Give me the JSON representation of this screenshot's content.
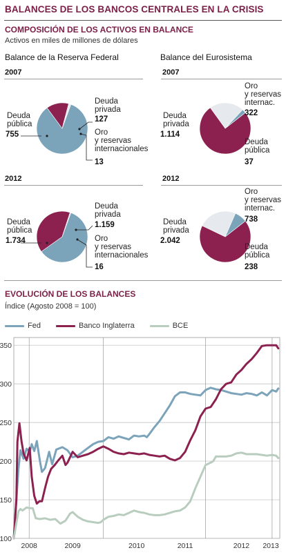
{
  "title": "BALANCES DE LOS BANCOS CENTRALES EN LA CRISIS",
  "section1": {
    "title": "COMPOSICIÓN DE LOS ACTIVOS EN BALANCE",
    "subtitle": "Activos en miles de millones de dólares",
    "fed_heading": "Balance de la Reserva Federal",
    "euro_heading": "Balance del Eurosistema"
  },
  "section2": {
    "title": "EVOLUCIÓN DE LOS BALANCES",
    "subtitle": "Índice (Agosto 2008 = 100)"
  },
  "colors": {
    "fed": "#7ba3ba",
    "boe": "#8c2150",
    "ecb": "#b9cdbf",
    "oro": "#e6eaee",
    "title": "#7a1f45"
  },
  "chart_data": [
    {
      "type": "pie",
      "title": "Balance de la Reserva Federal",
      "subtitle": "2007",
      "slices": [
        {
          "label": "Deuda pública",
          "value": 755
        },
        {
          "label": "Deuda privada",
          "value": 127
        },
        {
          "label": "Oro y reservas internacionales",
          "value": 13
        }
      ]
    },
    {
      "type": "pie",
      "title": "Balance del Eurosistema",
      "subtitle": "2007",
      "slices": [
        {
          "label": "Deuda privada",
          "value": 1114
        },
        {
          "label": "Oro y reservas internac.",
          "value": 322
        },
        {
          "label": "Deuda pública",
          "value": 37
        }
      ]
    },
    {
      "type": "pie",
      "title": "Balance de la Reserva Federal",
      "subtitle": "2012",
      "slices": [
        {
          "label": "Deuda pública",
          "value": 1734
        },
        {
          "label": "Deuda privada",
          "value": 1159
        },
        {
          "label": "Oro y reservas internacionales",
          "value": 16
        }
      ]
    },
    {
      "type": "pie",
      "title": "Balance del Eurosistema",
      "subtitle": "2012",
      "slices": [
        {
          "label": "Deuda privada",
          "value": 2042
        },
        {
          "label": "Oro y reservas internac.",
          "value": 738
        },
        {
          "label": "Deuda pública",
          "value": 238
        }
      ]
    },
    {
      "type": "line",
      "title": "EVOLUCIÓN DE LOS BALANCES",
      "subtitle": "Índice (Agosto 2008 = 100)",
      "x_unit": "year (decimal)",
      "xlim": [
        2007.95,
        2013.15
      ],
      "ylim": [
        100,
        360
      ],
      "yticks": [
        100,
        150,
        200,
        250,
        300,
        350
      ],
      "xtick_labels": [
        "2008",
        "2009",
        "2010",
        "2011",
        "2012",
        "2013"
      ],
      "xtick_values": [
        2008.25,
        2009.1,
        2010.35,
        2011.3,
        2012.4,
        2013.1
      ],
      "grid": true,
      "legend": "top-left",
      "series": [
        {
          "name": "Fed",
          "points": [
            [
              2007.95,
              100
            ],
            [
              2008.0,
              150
            ],
            [
              2008.04,
              190
            ],
            [
              2008.08,
              214
            ],
            [
              2008.14,
              203
            ],
            [
              2008.2,
              216
            ],
            [
              2008.26,
              212
            ],
            [
              2008.3,
              222
            ],
            [
              2008.35,
              213
            ],
            [
              2008.4,
              226
            ],
            [
              2008.46,
              200
            ],
            [
              2008.5,
              186
            ],
            [
              2008.56,
              191
            ],
            [
              2008.64,
              212
            ],
            [
              2008.7,
              196
            ],
            [
              2008.78,
              215
            ],
            [
              2008.9,
              218
            ],
            [
              2009.0,
              214
            ],
            [
              2009.1,
              205
            ],
            [
              2009.2,
              207
            ],
            [
              2009.3,
              212
            ],
            [
              2009.4,
              217
            ],
            [
              2009.5,
              222
            ],
            [
              2009.6,
              225
            ],
            [
              2009.7,
              226
            ],
            [
              2009.8,
              231
            ],
            [
              2009.9,
              229
            ],
            [
              2010.0,
              232
            ],
            [
              2010.1,
              230
            ],
            [
              2010.2,
              228
            ],
            [
              2010.3,
              233
            ],
            [
              2010.4,
              232
            ],
            [
              2010.5,
              233
            ],
            [
              2010.55,
              231
            ],
            [
              2010.6,
              235
            ],
            [
              2010.7,
              244
            ],
            [
              2010.8,
              252
            ],
            [
              2010.9,
              262
            ],
            [
              2011.0,
              272
            ],
            [
              2011.1,
              284
            ],
            [
              2011.2,
              289
            ],
            [
              2011.3,
              289
            ],
            [
              2011.4,
              287
            ],
            [
              2011.5,
              286
            ],
            [
              2011.6,
              285
            ],
            [
              2011.7,
              292
            ],
            [
              2011.8,
              295
            ],
            [
              2011.9,
              293
            ],
            [
              2012.0,
              292
            ],
            [
              2012.1,
              290
            ],
            [
              2012.2,
              288
            ],
            [
              2012.3,
              287
            ],
            [
              2012.4,
              286
            ],
            [
              2012.5,
              288
            ],
            [
              2012.6,
              287
            ],
            [
              2012.7,
              285
            ],
            [
              2012.8,
              289
            ],
            [
              2012.9,
              285
            ],
            [
              2013.0,
              292
            ],
            [
              2013.08,
              290
            ],
            [
              2013.12,
              294
            ]
          ]
        },
        {
          "name": "Banco Inglaterra",
          "points": [
            [
              2007.95,
              100
            ],
            [
              2008.0,
              150
            ],
            [
              2008.02,
              225
            ],
            [
              2008.06,
              249
            ],
            [
              2008.1,
              226
            ],
            [
              2008.14,
              210
            ],
            [
              2008.2,
              201
            ],
            [
              2008.26,
              217
            ],
            [
              2008.3,
              180
            ],
            [
              2008.35,
              155
            ],
            [
              2008.4,
              145
            ],
            [
              2008.45,
              148
            ],
            [
              2008.5,
              148
            ],
            [
              2008.56,
              165
            ],
            [
              2008.62,
              180
            ],
            [
              2008.68,
              190
            ],
            [
              2008.75,
              195
            ],
            [
              2008.82,
              201
            ],
            [
              2008.9,
              207
            ],
            [
              2008.96,
              195
            ],
            [
              2009.0,
              198
            ],
            [
              2009.1,
              212
            ],
            [
              2009.2,
              205
            ],
            [
              2009.3,
              207
            ],
            [
              2009.4,
              209
            ],
            [
              2009.5,
              212
            ],
            [
              2009.6,
              216
            ],
            [
              2009.7,
              219
            ],
            [
              2009.8,
              216
            ],
            [
              2009.9,
              212
            ],
            [
              2010.0,
              210
            ],
            [
              2010.1,
              209
            ],
            [
              2010.2,
              211
            ],
            [
              2010.3,
              210
            ],
            [
              2010.4,
              209
            ],
            [
              2010.5,
              210
            ],
            [
              2010.6,
              208
            ],
            [
              2010.7,
              207
            ],
            [
              2010.8,
              206
            ],
            [
              2010.9,
              207
            ],
            [
              2011.0,
              203
            ],
            [
              2011.1,
              201
            ],
            [
              2011.2,
              204
            ],
            [
              2011.3,
              212
            ],
            [
              2011.4,
              227
            ],
            [
              2011.5,
              240
            ],
            [
              2011.6,
              258
            ],
            [
              2011.7,
              268
            ],
            [
              2011.8,
              270
            ],
            [
              2011.9,
              280
            ],
            [
              2012.0,
              293
            ],
            [
              2012.1,
              300
            ],
            [
              2012.2,
              302
            ],
            [
              2012.3,
              312
            ],
            [
              2012.4,
              318
            ],
            [
              2012.5,
              326
            ],
            [
              2012.6,
              332
            ],
            [
              2012.7,
              340
            ],
            [
              2012.8,
              349
            ],
            [
              2012.9,
              350
            ],
            [
              2013.0,
              350
            ],
            [
              2013.08,
              350
            ],
            [
              2013.12,
              346
            ]
          ]
        },
        {
          "name": "BCE",
          "points": [
            [
              2007.95,
              100
            ],
            [
              2008.0,
              120
            ],
            [
              2008.04,
              135
            ],
            [
              2008.08,
              138
            ],
            [
              2008.12,
              136
            ],
            [
              2008.2,
              140
            ],
            [
              2008.26,
              139
            ],
            [
              2008.32,
              139
            ],
            [
              2008.38,
              126
            ],
            [
              2008.46,
              125
            ],
            [
              2008.56,
              126
            ],
            [
              2008.66,
              124
            ],
            [
              2008.76,
              125
            ],
            [
              2008.86,
              119
            ],
            [
              2008.96,
              123
            ],
            [
              2009.05,
              132
            ],
            [
              2009.1,
              134
            ],
            [
              2009.2,
              128
            ],
            [
              2009.3,
              124
            ],
            [
              2009.4,
              122
            ],
            [
              2009.5,
              121
            ],
            [
              2009.6,
              120
            ],
            [
              2009.65,
              121
            ],
            [
              2009.7,
              124
            ],
            [
              2009.8,
              128
            ],
            [
              2009.9,
              129
            ],
            [
              2010.0,
              131
            ],
            [
              2010.1,
              130
            ],
            [
              2010.2,
              133
            ],
            [
              2010.3,
              136
            ],
            [
              2010.4,
              134
            ],
            [
              2010.5,
              133
            ],
            [
              2010.6,
              131
            ],
            [
              2010.7,
              130
            ],
            [
              2010.8,
              130
            ],
            [
              2010.9,
              131
            ],
            [
              2011.0,
              133
            ],
            [
              2011.1,
              135
            ],
            [
              2011.2,
              136
            ],
            [
              2011.3,
              140
            ],
            [
              2011.4,
              148
            ],
            [
              2011.5,
              165
            ],
            [
              2011.6,
              180
            ],
            [
              2011.7,
              195
            ],
            [
              2011.8,
              198
            ],
            [
              2011.85,
              200
            ],
            [
              2011.9,
              206
            ],
            [
              2012.0,
              206
            ],
            [
              2012.1,
              206
            ],
            [
              2012.2,
              207
            ],
            [
              2012.3,
              210
            ],
            [
              2012.4,
              211
            ],
            [
              2012.5,
              209
            ],
            [
              2012.6,
              209
            ],
            [
              2012.7,
              209
            ],
            [
              2012.8,
              208
            ],
            [
              2012.9,
              207
            ],
            [
              2013.0,
              208
            ],
            [
              2013.08,
              207
            ],
            [
              2013.12,
              204
            ]
          ]
        }
      ],
      "annotation_lines_x": [
        2008.25,
        2009.7,
        2011.7,
        2013.0
      ]
    }
  ]
}
